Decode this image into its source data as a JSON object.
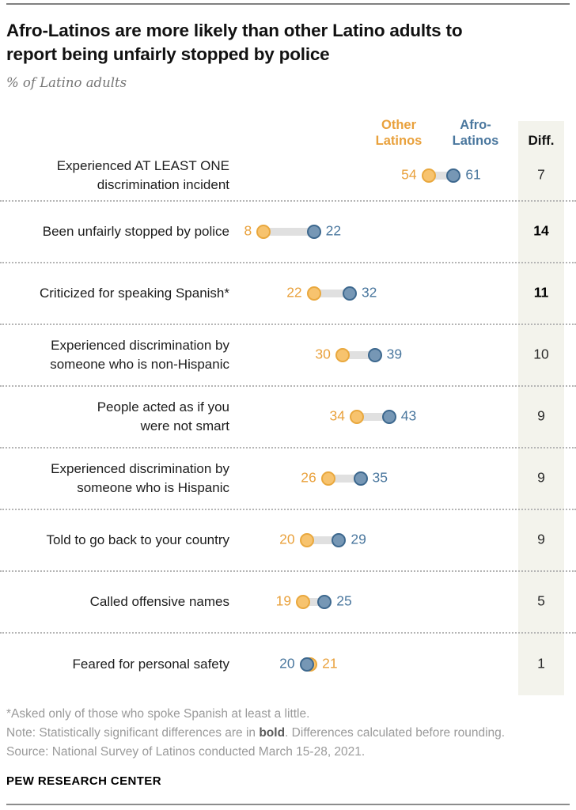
{
  "title": "Afro-Latinos are more likely than other Latino adults to\nreport being unfairly stopped by police",
  "subtitle": "% of Latino adults",
  "legend": {
    "other_label": "Other\nLatinos",
    "afro_label": "Afro-\nLatinos",
    "diff_label": "Diff."
  },
  "chart_data": {
    "type": "dumbbell",
    "series_names": [
      "Other Latinos",
      "Afro-Latinos"
    ],
    "x_range_note": "dot positions scale linearly with percentage values",
    "rows": [
      {
        "label_lines": [
          "Experienced AT LEAST ONE",
          "discrimination incident"
        ],
        "other": 54,
        "afro": 61,
        "diff": "7",
        "diff_bold": false
      },
      {
        "label_lines": [
          "Been unfairly stopped by police"
        ],
        "other": 8,
        "afro": 22,
        "diff": "14",
        "diff_bold": true
      },
      {
        "label_lines": [
          "Criticized for speaking Spanish*"
        ],
        "other": 22,
        "afro": 32,
        "diff": "11",
        "diff_bold": true
      },
      {
        "label_lines": [
          "Experienced discrimination by",
          "someone who is non-Hispanic"
        ],
        "other": 30,
        "afro": 39,
        "diff": "10",
        "diff_bold": false
      },
      {
        "label_lines": [
          "People acted as if you",
          "were not smart"
        ],
        "other": 34,
        "afro": 43,
        "diff": "9",
        "diff_bold": false
      },
      {
        "label_lines": [
          "Experienced discrimination by",
          "someone who is Hispanic"
        ],
        "other": 26,
        "afro": 35,
        "diff": "9",
        "diff_bold": false
      },
      {
        "label_lines": [
          "Told to go back to your country"
        ],
        "other": 20,
        "afro": 29,
        "diff": "9",
        "diff_bold": false
      },
      {
        "label_lines": [
          "Called offensive names"
        ],
        "other": 19,
        "afro": 25,
        "diff": "5",
        "diff_bold": false
      },
      {
        "label_lines": [
          "Feared for personal safety"
        ],
        "other": 21,
        "afro": 20,
        "diff": "1",
        "diff_bold": false
      }
    ]
  },
  "footer": {
    "footnote": "*Asked only of those who spoke Spanish at least a little.",
    "note_prefix": "Note: Statistically significant differences are in ",
    "note_bold": "bold",
    "note_suffix": ". Differences calculated before rounding.",
    "source": "Source: National Survey of Latinos conducted March 15-28, 2021.",
    "brand": "PEW RESEARCH CENTER"
  },
  "theme": {
    "orange_fill": "#F7C36E",
    "orange_stroke": "#E9A83E",
    "orange_text": "#E9A13C",
    "blue_fill": "#7697B5",
    "blue_stroke": "#3D688E",
    "blue_text": "#4A779E",
    "bar": "#E0E0E0",
    "diff_bg": "#F3F3EC",
    "separator": "#B5B5B5",
    "rule": "#808080",
    "muted": "#9A9A9A"
  }
}
